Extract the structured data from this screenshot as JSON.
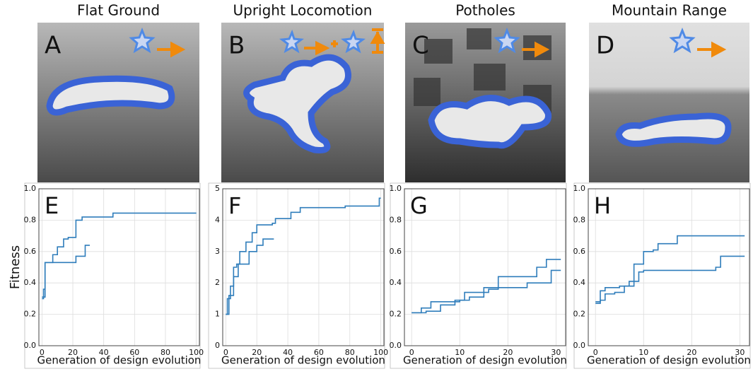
{
  "panels": [
    {
      "title": "Flat Ground",
      "label": "A"
    },
    {
      "title": "Upright Locomotion",
      "label": "B"
    },
    {
      "title": "Potholes",
      "label": "C"
    },
    {
      "title": "Mountain Range",
      "label": "D"
    }
  ],
  "chart_data": [
    {
      "type": "line",
      "label": "E",
      "y_label": "Fitness",
      "x_label": "Generation of design evolution",
      "step": true,
      "grid": true,
      "xlim": [
        -2,
        102
      ],
      "xticks": [
        0,
        20,
        40,
        60,
        80,
        100
      ],
      "ylim": [
        0,
        1
      ],
      "yticks": [
        {
          "value": 0,
          "label": "0.0"
        },
        0.2,
        0.4,
        0.6,
        0.8,
        {
          "value": 1,
          "label": "1.0"
        }
      ],
      "series": [
        {
          "color": "#2f7dbb",
          "x": [
            0,
            1,
            2,
            7,
            10,
            14,
            17,
            22,
            26,
            46,
            100
          ],
          "values": [
            0.3,
            0.36,
            0.53,
            0.58,
            0.63,
            0.68,
            0.69,
            0.8,
            0.82,
            0.845,
            0.845
          ]
        },
        {
          "color": "#2f7dbb",
          "x": [
            0,
            2,
            22,
            28,
            31
          ],
          "values": [
            0.31,
            0.53,
            0.57,
            0.64,
            0.64
          ]
        }
      ]
    },
    {
      "type": "line",
      "label": "F",
      "x_label": "Generation of design evolution",
      "step": true,
      "grid": true,
      "xlim": [
        -2,
        102
      ],
      "xticks": [
        0,
        20,
        40,
        60,
        80,
        100
      ],
      "ylim": [
        0,
        5
      ],
      "yticks": [
        0,
        1,
        2,
        3,
        4,
        5
      ],
      "series": [
        {
          "color": "#2f7dbb",
          "x": [
            0,
            1,
            3,
            5,
            7,
            9,
            13,
            17,
            20,
            30,
            32,
            42,
            48,
            77,
            99,
            100
          ],
          "values": [
            1.0,
            1.5,
            1.9,
            2.5,
            2.6,
            3.0,
            3.3,
            3.6,
            3.85,
            3.9,
            4.05,
            4.25,
            4.4,
            4.45,
            4.7,
            4.7
          ]
        },
        {
          "color": "#2f7dbb",
          "x": [
            0,
            2,
            5,
            8,
            15,
            20,
            24,
            31
          ],
          "values": [
            1.0,
            1.6,
            2.2,
            2.6,
            3.0,
            3.2,
            3.4,
            3.4
          ]
        }
      ]
    },
    {
      "type": "line",
      "label": "G",
      "x_label": "Generation of design evolution",
      "step": true,
      "grid": true,
      "xlim": [
        -1.5,
        32
      ],
      "xticks": [
        0,
        10,
        20,
        30
      ],
      "ylim": [
        0,
        1
      ],
      "yticks": [
        {
          "value": 0,
          "label": "0.0"
        },
        0.2,
        0.4,
        0.6,
        0.8,
        {
          "value": 1,
          "label": "1.0"
        }
      ],
      "series": [
        {
          "color": "#2f7dbb",
          "x": [
            0,
            2,
            4,
            10,
            11,
            16,
            18,
            26,
            28,
            31
          ],
          "values": [
            0.21,
            0.24,
            0.28,
            0.29,
            0.34,
            0.36,
            0.44,
            0.5,
            0.55,
            0.55
          ]
        },
        {
          "color": "#2f7dbb",
          "x": [
            0,
            3,
            6,
            9,
            12,
            15,
            24,
            29,
            31
          ],
          "values": [
            0.21,
            0.22,
            0.26,
            0.29,
            0.31,
            0.37,
            0.4,
            0.48,
            0.48
          ]
        }
      ]
    },
    {
      "type": "line",
      "label": "H",
      "x_label": "Generation of design evolution",
      "step": true,
      "grid": true,
      "xlim": [
        -1.5,
        32
      ],
      "xticks": [
        0,
        10,
        20,
        30
      ],
      "ylim": [
        0,
        1
      ],
      "yticks": [
        {
          "value": 0,
          "label": "0.0"
        },
        0.2,
        0.4,
        0.6,
        0.8,
        {
          "value": 1,
          "label": "1.0"
        }
      ],
      "series": [
        {
          "color": "#2f7dbb",
          "x": [
            0,
            1,
            2,
            4,
            6,
            8,
            10,
            12,
            13,
            17,
            31
          ],
          "values": [
            0.28,
            0.29,
            0.33,
            0.34,
            0.38,
            0.52,
            0.6,
            0.61,
            0.65,
            0.7,
            0.7
          ]
        },
        {
          "color": "#2f7dbb",
          "x": [
            0,
            1,
            2,
            5,
            7,
            9,
            10,
            25,
            26,
            31
          ],
          "values": [
            0.27,
            0.35,
            0.37,
            0.38,
            0.41,
            0.47,
            0.48,
            0.5,
            0.57,
            0.57
          ]
        }
      ]
    }
  ]
}
